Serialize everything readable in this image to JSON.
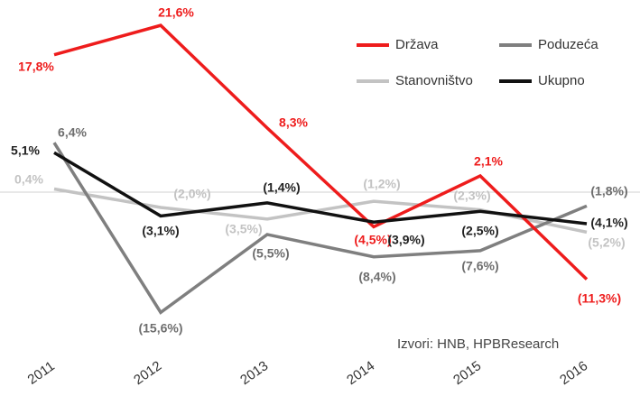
{
  "chart_data": {
    "type": "line",
    "categories": [
      "2011",
      "2012",
      "2013",
      "2014",
      "2015",
      "2016"
    ],
    "series": [
      {
        "name": "Stanovništvo",
        "color": "#c3c3c3",
        "values": [
          0.4,
          -2.0,
          -3.5,
          -1.2,
          -2.3,
          -5.2
        ],
        "value_labels": [
          "0,4%",
          "(2,0%)",
          "(3,5%)",
          "(1,2%)",
          "(2,3%)",
          "(5,2%)"
        ]
      },
      {
        "name": "Poduzeća",
        "color": "#7f7f7f",
        "values": [
          6.4,
          -15.6,
          -5.5,
          -8.4,
          -7.6,
          -1.8
        ],
        "value_labels": [
          "6,4%",
          "(15,6%)",
          "(5,5%)",
          "(8,4%)",
          "(7,6%)",
          "(1,8%)"
        ]
      },
      {
        "name": "Država",
        "color": "#ee1c1c",
        "values": [
          17.8,
          21.6,
          8.3,
          -4.5,
          2.1,
          -11.3
        ],
        "value_labels": [
          "17,8%",
          "21,6%",
          "8,3%",
          "(4,5%)",
          "2,1%",
          "(11,3%)"
        ]
      },
      {
        "name": "Ukupno",
        "color": "#111111",
        "values": [
          5.1,
          -3.1,
          -1.4,
          -3.9,
          -2.5,
          -4.1
        ],
        "value_labels": [
          "5,1%",
          "(3,1%)",
          "(1,4%)",
          "(3,9%)",
          "(2,5%)",
          "(4,1%)"
        ]
      }
    ],
    "ylim": [
      -20,
      24
    ],
    "source": "Izvori: HNB, HPBResearch"
  }
}
